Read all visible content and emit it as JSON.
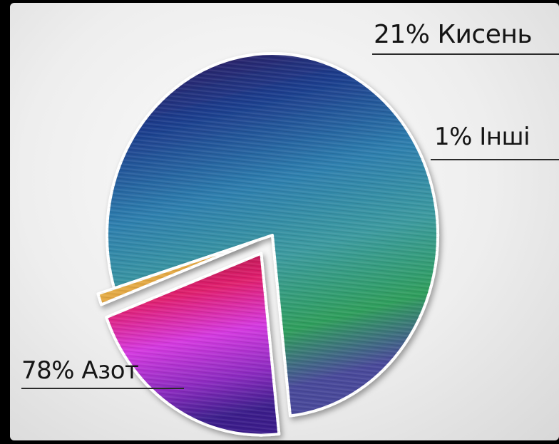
{
  "chart_data": {
    "type": "pie",
    "slices": [
      {
        "label": "78% Азот",
        "value": 78,
        "color": "#2c6a8a"
      },
      {
        "label": "21% Кисень",
        "value": 21,
        "color": "#c81e8c"
      },
      {
        "label": "1% Інші",
        "value": 1,
        "color": "#e8c23a"
      }
    ]
  }
}
